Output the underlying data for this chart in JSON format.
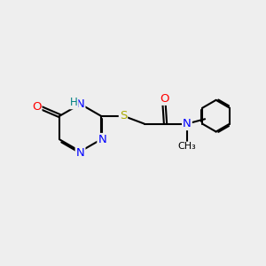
{
  "background_color": "#eeeeee",
  "atom_colors": {
    "C": "#000000",
    "N": "#0000ff",
    "O": "#ff0000",
    "S": "#aaaa00",
    "H": "#008080"
  },
  "bond_color": "#000000",
  "bond_width": 1.5,
  "dbo": 0.055,
  "font_size": 9.5,
  "fig_width": 3.0,
  "fig_height": 3.0,
  "dpi": 100
}
